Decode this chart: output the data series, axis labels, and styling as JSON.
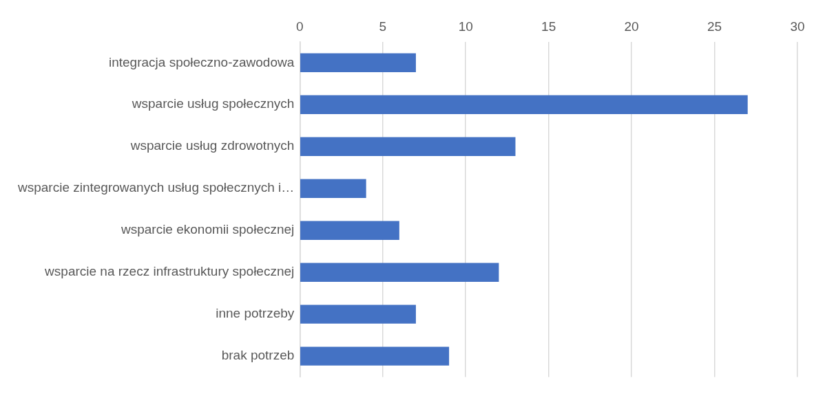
{
  "chart_data": {
    "type": "bar",
    "orientation": "horizontal",
    "categories": [
      "integracja społeczno-zawodowa",
      "wsparcie usług społecznych",
      "wsparcie usług zdrowotnych",
      "wsparcie zintegrowanych usług społecznych i…",
      "wsparcie ekonomii społecznej",
      "wsparcie na rzecz infrastruktury społecznej",
      "inne potrzeby",
      "brak potrzeb"
    ],
    "values": [
      7,
      27,
      13,
      4,
      6,
      12,
      7,
      9
    ],
    "color": "#4472c4",
    "xlim": [
      0,
      30
    ],
    "xticks": [
      0,
      5,
      10,
      15,
      20,
      25,
      30
    ],
    "grid": "x",
    "legend": false
  }
}
